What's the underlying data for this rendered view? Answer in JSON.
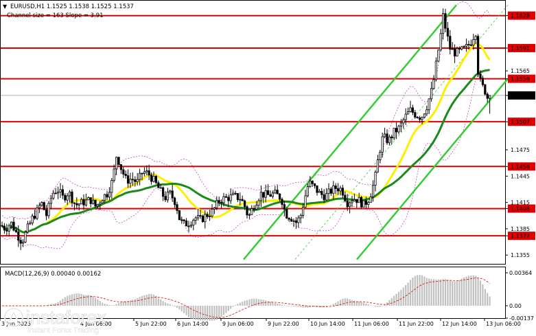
{
  "header": {
    "symbol_line": "EURUSD,H1  1.1525 1.1538 1.1525 1.1537",
    "channel_line": "Channel size = 163 Slope = 3.91"
  },
  "macd": {
    "label": "MACD(12,26,9) 0.00040 0.00162",
    "ticks": [
      "0.00364",
      "0.00",
      "-0.00137"
    ]
  },
  "watermark": {
    "brand": "instaforex",
    "tagline": "Instant Forex Trading"
  },
  "colors": {
    "level_line": "#e00000",
    "level_label_bg": "#e00000",
    "price_label_bg": "#000000",
    "channel": "#33cc33",
    "ma_green": "#1a8a1a",
    "ma_yellow": "#ffee00",
    "bollinger": "#bb33bb",
    "macd_hist": "#c0c0c0",
    "macd_signal": "#e00000",
    "candles": "#000000"
  },
  "chart_data": {
    "type": "candlestick",
    "symbol": "EURUSD",
    "timeframe": "H1",
    "last_price": 1.1537,
    "price_axis": {
      "ylim": [
        1.1345,
        1.1645
      ],
      "ticks": [
        {
          "value": 1.1628,
          "text": "1.1628",
          "style": "level"
        },
        {
          "value": 1.1591,
          "text": "1.1591",
          "style": "level"
        },
        {
          "value": 1.1565,
          "text": "1.1565",
          "style": "plain"
        },
        {
          "value": 1.1556,
          "text": "1.1556",
          "style": "level"
        },
        {
          "value": 1.1537,
          "text": "1.1537",
          "style": "price"
        },
        {
          "value": 1.1507,
          "text": "1.1507",
          "style": "level"
        },
        {
          "value": 1.1475,
          "text": "1.1475",
          "style": "plain"
        },
        {
          "value": 1.1456,
          "text": "1.1456",
          "style": "level"
        },
        {
          "value": 1.1445,
          "text": "1.1445",
          "style": "plain"
        },
        {
          "value": 1.1415,
          "text": "1.1415",
          "style": "plain"
        },
        {
          "value": 1.1408,
          "text": "1.1408",
          "style": "level"
        },
        {
          "value": 1.1385,
          "text": "1.1385",
          "style": "plain"
        },
        {
          "value": 1.1377,
          "text": "1.1377",
          "style": "level"
        },
        {
          "value": 1.1355,
          "text": "1.1355",
          "style": "plain"
        }
      ]
    },
    "levels": [
      1.1628,
      1.1591,
      1.1556,
      1.1507,
      1.1456,
      1.1408,
      1.1377
    ],
    "time_axis": {
      "labels": [
        "3 Jun 2025",
        "4 Jun 06:00",
        "5 Jun 22:00",
        "6 Jun 14:00",
        "9 Jun 06:00",
        "9 Jun 22:00",
        "10 Jun 14:00",
        "11 Jun 06:00",
        "11 Jun 22:00",
        "12 Jun 14:00",
        "13 Jun 06:00"
      ]
    },
    "macd": {
      "params": "12,26,9",
      "main": 0.0004,
      "signal": 0.00162,
      "ylim": [
        -0.00137,
        0.00364
      ]
    },
    "price_path": [
      [
        0,
        1.139
      ],
      [
        8,
        1.1385
      ],
      [
        16,
        1.1392
      ],
      [
        24,
        1.138
      ],
      [
        32,
        1.137
      ],
      [
        40,
        1.1385
      ],
      [
        48,
        1.1398
      ],
      [
        54,
        1.1405
      ],
      [
        60,
        1.1415
      ],
      [
        68,
        1.14
      ],
      [
        76,
        1.1425
      ],
      [
        84,
        1.143
      ],
      [
        92,
        1.142
      ],
      [
        100,
        1.1427
      ],
      [
        110,
        1.1412
      ],
      [
        120,
        1.1415
      ],
      [
        132,
        1.1418
      ],
      [
        140,
        1.141
      ],
      [
        148,
        1.142
      ],
      [
        156,
        1.1425
      ],
      [
        164,
        1.144
      ],
      [
        170,
        1.147
      ],
      [
        176,
        1.1455
      ],
      [
        184,
        1.144
      ],
      [
        192,
        1.1442
      ],
      [
        200,
        1.1438
      ],
      [
        208,
        1.145
      ],
      [
        216,
        1.1448
      ],
      [
        224,
        1.144
      ],
      [
        232,
        1.143
      ],
      [
        240,
        1.142
      ],
      [
        248,
        1.1425
      ],
      [
        256,
        1.1415
      ],
      [
        262,
        1.1395
      ],
      [
        268,
        1.139
      ],
      [
        276,
        1.1392
      ],
      [
        284,
        1.1398
      ],
      [
        292,
        1.1395
      ],
      [
        300,
        1.14
      ],
      [
        310,
        1.1405
      ],
      [
        320,
        1.1418
      ],
      [
        330,
        1.142
      ],
      [
        340,
        1.1422
      ],
      [
        350,
        1.142
      ],
      [
        356,
        1.1412
      ],
      [
        362,
        1.1398
      ],
      [
        370,
        1.1412
      ],
      [
        380,
        1.1425
      ],
      [
        390,
        1.1423
      ],
      [
        400,
        1.1425
      ],
      [
        410,
        1.142
      ],
      [
        416,
        1.1402
      ],
      [
        424,
        1.1398
      ],
      [
        432,
        1.1392
      ],
      [
        438,
        1.14
      ],
      [
        444,
        1.142
      ],
      [
        450,
        1.1438
      ],
      [
        458,
        1.1432
      ],
      [
        466,
        1.1425
      ],
      [
        474,
        1.1422
      ],
      [
        482,
        1.1428
      ],
      [
        490,
        1.1432
      ],
      [
        498,
        1.143
      ],
      [
        506,
        1.1415
      ],
      [
        514,
        1.142
      ],
      [
        522,
        1.1418
      ],
      [
        530,
        1.1412
      ],
      [
        538,
        1.142
      ],
      [
        546,
        1.144
      ],
      [
        552,
        1.147
      ],
      [
        558,
        1.149
      ],
      [
        566,
        1.1485
      ],
      [
        574,
        1.1495
      ],
      [
        582,
        1.15
      ],
      [
        590,
        1.1512
      ],
      [
        598,
        1.152
      ],
      [
        606,
        1.1515
      ],
      [
        614,
        1.1512
      ],
      [
        622,
        1.1525
      ],
      [
        630,
        1.1545
      ],
      [
        636,
        1.1575
      ],
      [
        642,
        1.1605
      ],
      [
        646,
        1.163
      ],
      [
        650,
        1.161
      ],
      [
        656,
        1.159
      ],
      [
        664,
        1.1585
      ],
      [
        672,
        1.1588
      ],
      [
        680,
        1.1592
      ],
      [
        688,
        1.16
      ],
      [
        693,
        1.1612
      ],
      [
        697,
        1.156
      ],
      [
        702,
        1.1548
      ],
      [
        706,
        1.1544
      ],
      [
        710,
        1.1535
      ],
      [
        714,
        1.1528
      ],
      [
        718,
        1.1537
      ]
    ]
  }
}
